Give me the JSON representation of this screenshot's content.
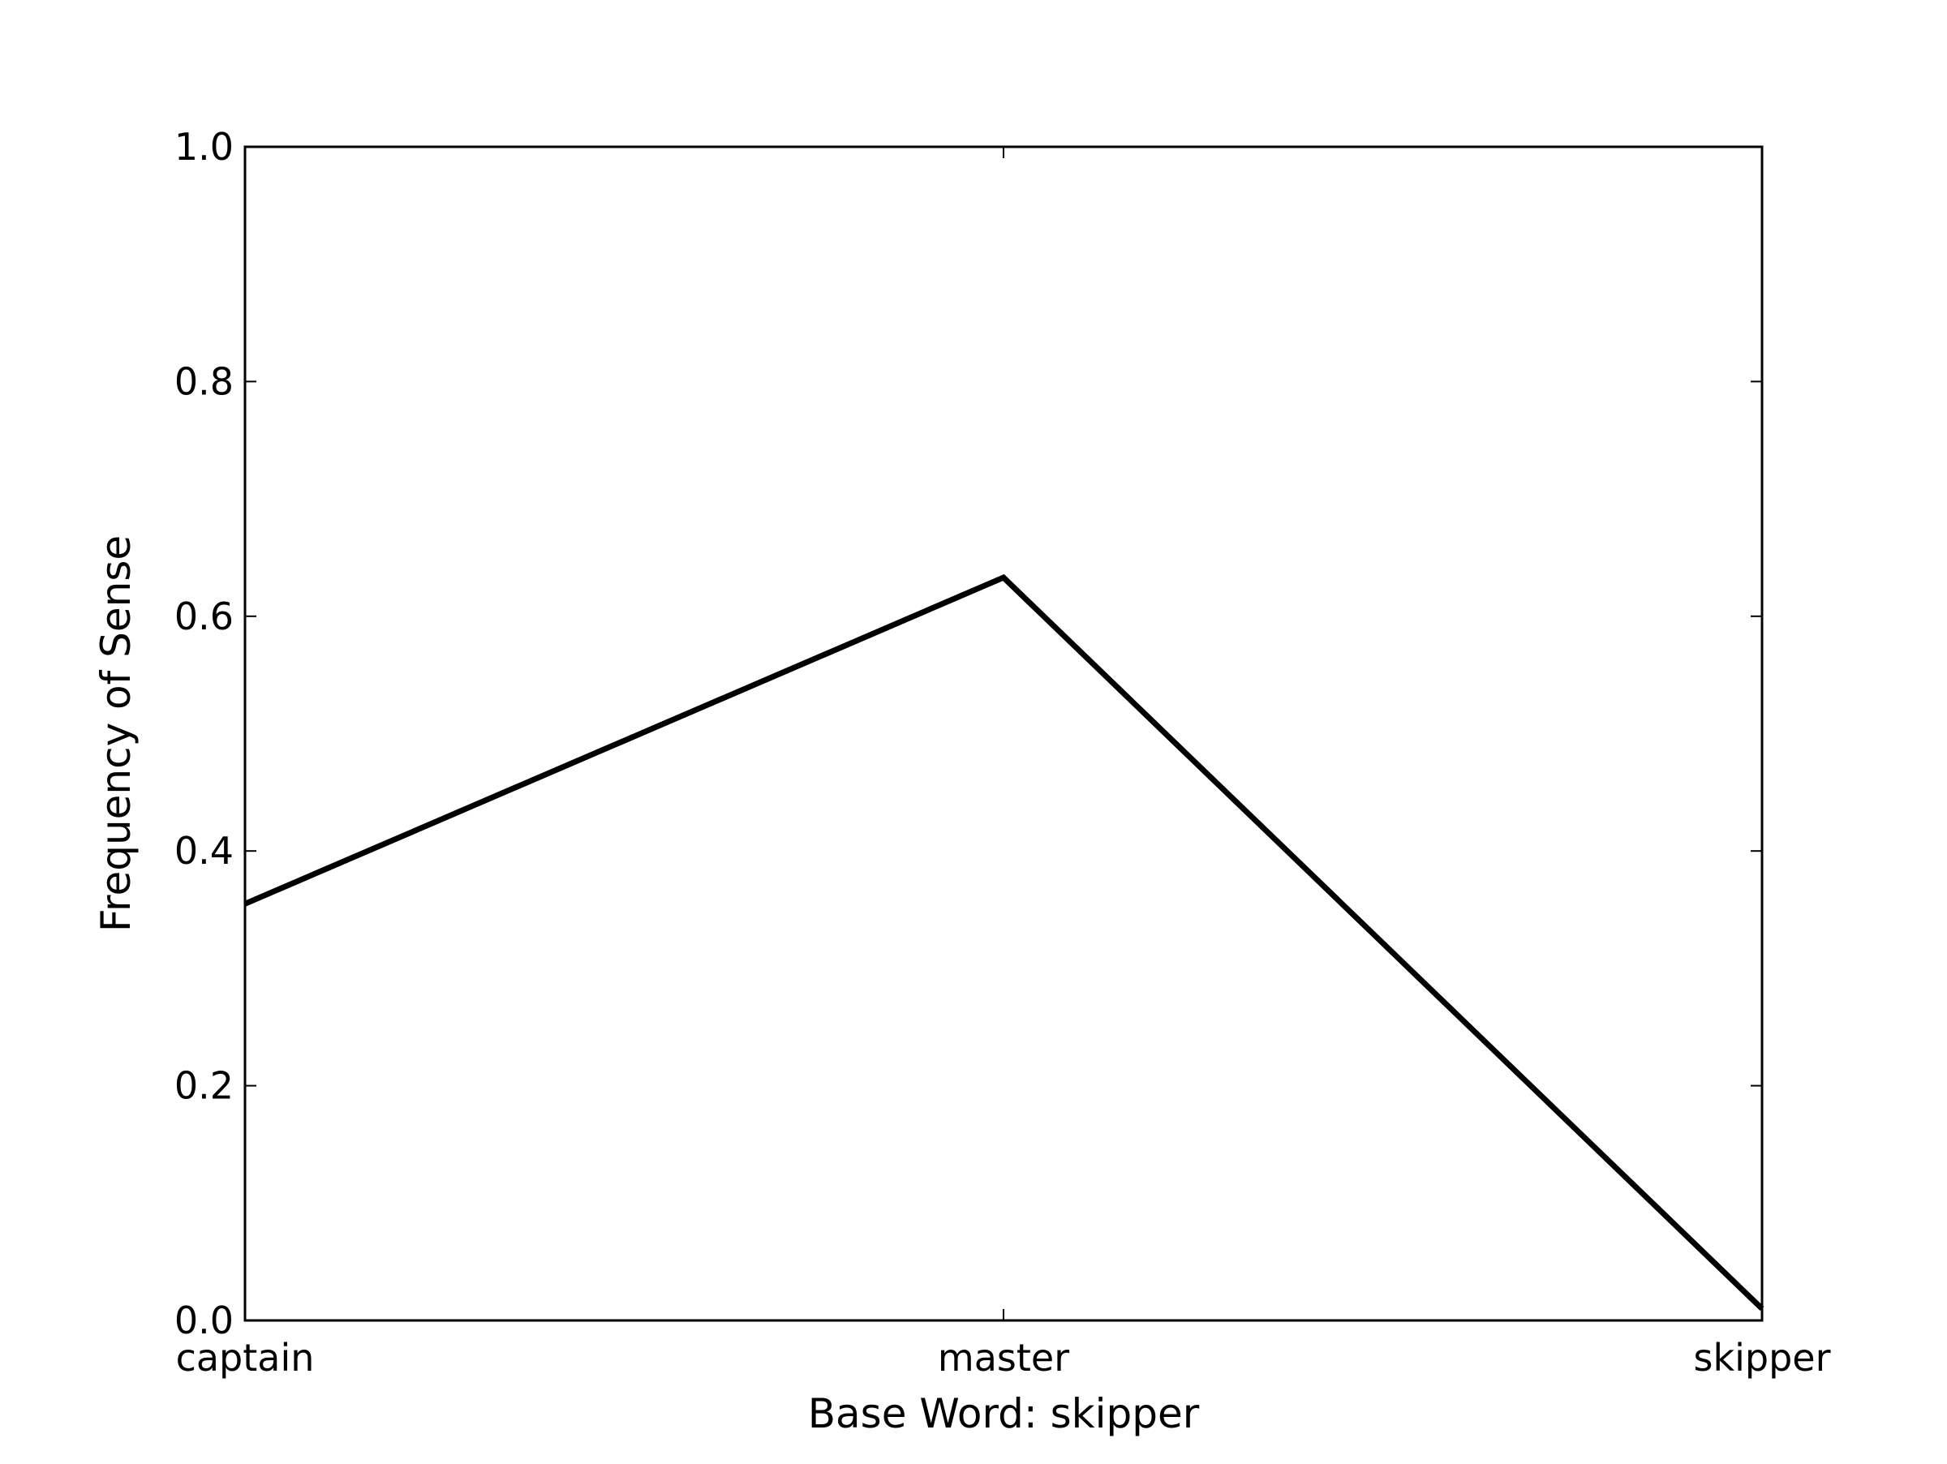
{
  "chart_data": {
    "type": "line",
    "title": "",
    "xlabel": "Base Word: skipper",
    "ylabel": "Frequency of Sense",
    "categories": [
      "captain",
      "master",
      "skipper"
    ],
    "series": [
      {
        "values": [
          0.355,
          0.633,
          0.01
        ]
      }
    ],
    "ylim": [
      0.0,
      1.0
    ],
    "yticks": [
      "0.0",
      "0.2",
      "0.4",
      "0.6",
      "0.8",
      "1.0"
    ],
    "ytick_values": [
      0.0,
      0.2,
      0.4,
      0.6,
      0.8,
      1.0
    ],
    "grid": false,
    "legend": "none",
    "colors": {
      "line": "#000000",
      "axes": "#000000",
      "background": "#ffffff"
    }
  }
}
